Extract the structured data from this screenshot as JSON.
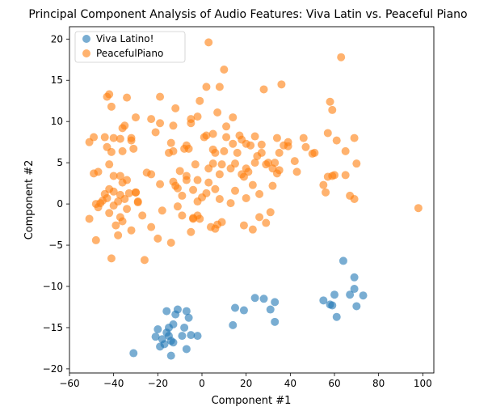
{
  "chart_data": {
    "type": "scatter",
    "title": "Principal Component Analysis of Audio Features: Viva Latin vs. Peaceful Piano",
    "xlabel": "Component #1",
    "ylabel": "Component #2",
    "xlim": [
      -60,
      105
    ],
    "ylim": [
      -20.5,
      21.5
    ],
    "xticks": [
      -60,
      -40,
      -20,
      0,
      20,
      40,
      60,
      80,
      100
    ],
    "yticks": [
      -20,
      -15,
      -10,
      -5,
      0,
      5,
      10,
      15,
      20
    ],
    "grid": false,
    "legend_position": "top-left",
    "series": [
      {
        "name": "Viva Latino!",
        "color": "#1f77b4",
        "points": [
          [
            -31,
            -18.1
          ],
          [
            -21,
            -16.1
          ],
          [
            -20,
            -15.2
          ],
          [
            -19,
            -17.3
          ],
          [
            -18,
            -16.4
          ],
          [
            -17,
            -17.0
          ],
          [
            -16,
            -15.6
          ],
          [
            -16,
            -13.0
          ],
          [
            -15,
            -16.0
          ],
          [
            -15,
            -15.0
          ],
          [
            -14,
            -18.4
          ],
          [
            -14,
            -16.6
          ],
          [
            -13,
            -14.6
          ],
          [
            -13,
            -16.8
          ],
          [
            -12,
            -13.4
          ],
          [
            -11,
            -12.8
          ],
          [
            -9,
            -16.0
          ],
          [
            -8,
            -15.0
          ],
          [
            -7,
            -13.0
          ],
          [
            -7,
            -17.6
          ],
          [
            -6,
            -13.8
          ],
          [
            -5,
            -15.9
          ],
          [
            -2,
            -16.0
          ],
          [
            14,
            -14.7
          ],
          [
            15,
            -12.6
          ],
          [
            19,
            -12.9
          ],
          [
            24,
            -11.4
          ],
          [
            28,
            -11.5
          ],
          [
            31,
            -12.8
          ],
          [
            33,
            -14.3
          ],
          [
            33,
            -11.9
          ],
          [
            55,
            -11.7
          ],
          [
            58,
            -12.2
          ],
          [
            59,
            -12.3
          ],
          [
            60,
            -11.0
          ],
          [
            61,
            -13.7
          ],
          [
            64,
            -6.9
          ],
          [
            67,
            -11.0
          ],
          [
            69,
            -8.9
          ],
          [
            69,
            -10.3
          ],
          [
            70,
            -12.4
          ],
          [
            73,
            -11.1
          ]
        ]
      },
      {
        "name": "PeacefulPiano",
        "color": "#ff7f0e",
        "points": [
          [
            -51,
            7.5
          ],
          [
            -51,
            -1.8
          ],
          [
            -49,
            8.1
          ],
          [
            -49,
            3.7
          ],
          [
            -48,
            0.0
          ],
          [
            -48,
            -4.4
          ],
          [
            -47,
            -0.4
          ],
          [
            -47,
            3.9
          ],
          [
            -46,
            0.1
          ],
          [
            -45,
            0.4
          ],
          [
            -44,
            1.2
          ],
          [
            -44,
            8.1
          ],
          [
            -43,
            13.0
          ],
          [
            -43,
            6.9
          ],
          [
            -43,
            0.7
          ],
          [
            -42,
            13.3
          ],
          [
            -42,
            4.8
          ],
          [
            -42,
            1.8
          ],
          [
            -42,
            -1.1
          ],
          [
            -41,
            -6.6
          ],
          [
            -41,
            11.8
          ],
          [
            -41,
            6.3
          ],
          [
            -40,
            8.0
          ],
          [
            -40,
            3.4
          ],
          [
            -40,
            1.5
          ],
          [
            -40,
            -0.2
          ],
          [
            -39,
            -2.6
          ],
          [
            -38,
            0.3
          ],
          [
            -38,
            -3.8
          ],
          [
            -37,
            7.9
          ],
          [
            -37,
            3.4
          ],
          [
            -37,
            1.1
          ],
          [
            -37,
            -1.6
          ],
          [
            -36,
            9.2
          ],
          [
            -36,
            6.4
          ],
          [
            -36,
            2.6
          ],
          [
            -36,
            -2.1
          ],
          [
            -35,
            9.5
          ],
          [
            -35,
            0.6
          ],
          [
            -34,
            12.9
          ],
          [
            -34,
            2.9
          ],
          [
            -34,
            -0.6
          ],
          [
            -33,
            1.3
          ],
          [
            -32,
            7.7
          ],
          [
            -32,
            8.0
          ],
          [
            -32,
            -3.2
          ],
          [
            -31,
            6.7
          ],
          [
            -30,
            10.5
          ],
          [
            -30,
            1.4
          ],
          [
            -30,
            1.4
          ],
          [
            -29,
            0.2
          ],
          [
            -29,
            0.3
          ],
          [
            -27,
            -1.4
          ],
          [
            -26,
            -6.8
          ],
          [
            -25,
            3.8
          ],
          [
            -23,
            10.3
          ],
          [
            -23,
            -2.8
          ],
          [
            -23,
            3.6
          ],
          [
            -21,
            8.7
          ],
          [
            -20,
            -4.2
          ],
          [
            -19,
            13.0
          ],
          [
            -19,
            9.8
          ],
          [
            -19,
            2.4
          ],
          [
            -18,
            -0.8
          ],
          [
            -15,
            6.2
          ],
          [
            -14,
            7.4
          ],
          [
            -14,
            -4.7
          ],
          [
            -13,
            2.7
          ],
          [
            -13,
            6.4
          ],
          [
            -13,
            9.5
          ],
          [
            -12,
            2.2
          ],
          [
            -12,
            11.6
          ],
          [
            -11,
            1.9
          ],
          [
            -11,
            -0.3
          ],
          [
            -10,
            4.0
          ],
          [
            -9,
            1.0
          ],
          [
            -9,
            -1.4
          ],
          [
            -8,
            6.7
          ],
          [
            -7,
            2.9
          ],
          [
            -7,
            3.4
          ],
          [
            -7,
            7.1
          ],
          [
            -6,
            6.7
          ],
          [
            -5,
            -3.4
          ],
          [
            -5,
            9.8
          ],
          [
            -5,
            10.3
          ],
          [
            -4,
            1.7
          ],
          [
            -4,
            -1.7
          ],
          [
            -4,
            -1.8
          ],
          [
            -3,
            4.8
          ],
          [
            -2,
            0.3
          ],
          [
            -2,
            -1.4
          ],
          [
            -2,
            2.9
          ],
          [
            -2,
            10.6
          ],
          [
            -1,
            -1.8
          ],
          [
            -1,
            12.5
          ],
          [
            0,
            0.8
          ],
          [
            1,
            8.1
          ],
          [
            2,
            14.2
          ],
          [
            2,
            1.3
          ],
          [
            2,
            8.3
          ],
          [
            3,
            2.6
          ],
          [
            3,
            4.3
          ],
          [
            3,
            19.6
          ],
          [
            4,
            -2.8
          ],
          [
            5,
            4.9
          ],
          [
            5,
            6.6
          ],
          [
            5,
            8.5
          ],
          [
            6,
            1.8
          ],
          [
            6,
            6.2
          ],
          [
            6,
            -3.0
          ],
          [
            7,
            -2.5
          ],
          [
            7,
            11.1
          ],
          [
            8,
            3.6
          ],
          [
            8,
            0.6
          ],
          [
            8,
            14.2
          ],
          [
            9,
            -2.2
          ],
          [
            9,
            4.8
          ],
          [
            10,
            6.4
          ],
          [
            10,
            16.3
          ],
          [
            11,
            8.1
          ],
          [
            11,
            9.4
          ],
          [
            13,
            0.1
          ],
          [
            13,
            4.3
          ],
          [
            14,
            7.3
          ],
          [
            14,
            10.5
          ],
          [
            15,
            1.6
          ],
          [
            15,
            4.9
          ],
          [
            16,
            6.2
          ],
          [
            17,
            8.3
          ],
          [
            18,
            7.8
          ],
          [
            18,
            3.6
          ],
          [
            19,
            -2.6
          ],
          [
            19,
            3.3
          ],
          [
            20,
            0.7
          ],
          [
            20,
            4.3
          ],
          [
            20,
            7.3
          ],
          [
            21,
            3.9
          ],
          [
            22,
            7.1
          ],
          [
            23,
            2.3
          ],
          [
            23,
            -3.1
          ],
          [
            24,
            5.0
          ],
          [
            24,
            8.2
          ],
          [
            25,
            5.8
          ],
          [
            26,
            1.2
          ],
          [
            26,
            -1.6
          ],
          [
            27,
            6.2
          ],
          [
            27,
            7.2
          ],
          [
            28,
            13.9
          ],
          [
            29,
            4.8
          ],
          [
            29,
            -2.3
          ],
          [
            30,
            5.0
          ],
          [
            31,
            -1.0
          ],
          [
            32,
            4.3
          ],
          [
            32,
            2.2
          ],
          [
            33,
            5.0
          ],
          [
            34,
            3.7
          ],
          [
            34,
            8.0
          ],
          [
            35,
            4.1
          ],
          [
            35,
            6.2
          ],
          [
            36,
            14.5
          ],
          [
            37,
            7.1
          ],
          [
            39,
            7.0
          ],
          [
            39,
            7.5
          ],
          [
            42,
            5.2
          ],
          [
            43,
            3.9
          ],
          [
            46,
            8.0
          ],
          [
            47,
            6.9
          ],
          [
            50,
            6.1
          ],
          [
            51,
            6.2
          ],
          [
            55,
            2.3
          ],
          [
            56,
            1.4
          ],
          [
            57,
            3.3
          ],
          [
            57,
            8.6
          ],
          [
            58,
            12.4
          ],
          [
            59,
            11.4
          ],
          [
            59,
            3.4
          ],
          [
            60,
            3.5
          ],
          [
            61,
            7.7
          ],
          [
            63,
            17.8
          ],
          [
            65,
            6.4
          ],
          [
            65,
            3.5
          ],
          [
            67,
            1.0
          ],
          [
            69,
            8.0
          ],
          [
            69,
            0.6
          ],
          [
            70,
            4.9
          ],
          [
            98,
            -0.5
          ]
        ]
      }
    ]
  }
}
